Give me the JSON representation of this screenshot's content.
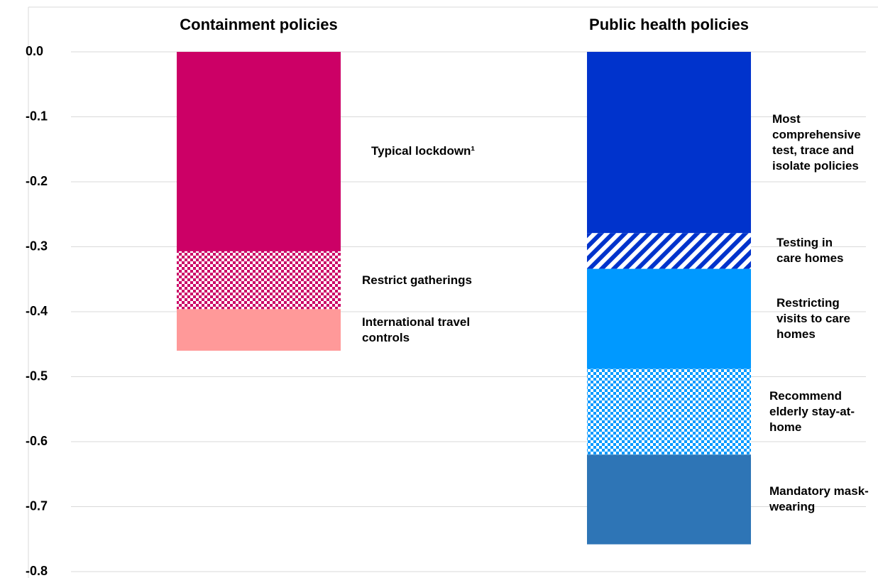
{
  "chart_data": {
    "type": "stacked-bar",
    "categories": [
      "Containment policies",
      "Public health policies"
    ],
    "series": [
      {
        "name": "Typical lockdown¹",
        "color": "#cc0066",
        "pattern": "solid",
        "values": [
          -0.307,
          null
        ]
      },
      {
        "name": "Restrict gatherings",
        "color": "#cc0066",
        "pattern": "checker",
        "values": [
          -0.089,
          null
        ]
      },
      {
        "name": "International travel controls",
        "color": "#ff9999",
        "pattern": "solid",
        "values": [
          -0.064,
          null
        ]
      },
      {
        "name": "Most comprehensive test, trace and isolate policies",
        "color": "#0033cc",
        "pattern": "solid",
        "values": [
          null,
          -0.279
        ]
      },
      {
        "name": "Testing in care homes",
        "color": "#0033cc",
        "pattern": "stripes",
        "values": [
          null,
          -0.055
        ]
      },
      {
        "name": "Restricting visits to care homes",
        "color": "#0099ff",
        "pattern": "solid",
        "values": [
          null,
          -0.154
        ]
      },
      {
        "name": "Recommend elderly stay-at-home",
        "color": "#0099ff",
        "pattern": "checker",
        "values": [
          null,
          -0.132
        ]
      },
      {
        "name": "Mandatory mask-wearing",
        "color": "#2e75b6",
        "pattern": "solid",
        "values": [
          null,
          -0.138
        ]
      }
    ],
    "ylim": [
      -0.8,
      0
    ],
    "yticks": [
      {
        "value": 0,
        "label": "0.0"
      },
      -0.1,
      -0.2,
      -0.3,
      -0.4,
      -0.5,
      -0.6,
      -0.7,
      -0.8
    ],
    "grid": true
  }
}
